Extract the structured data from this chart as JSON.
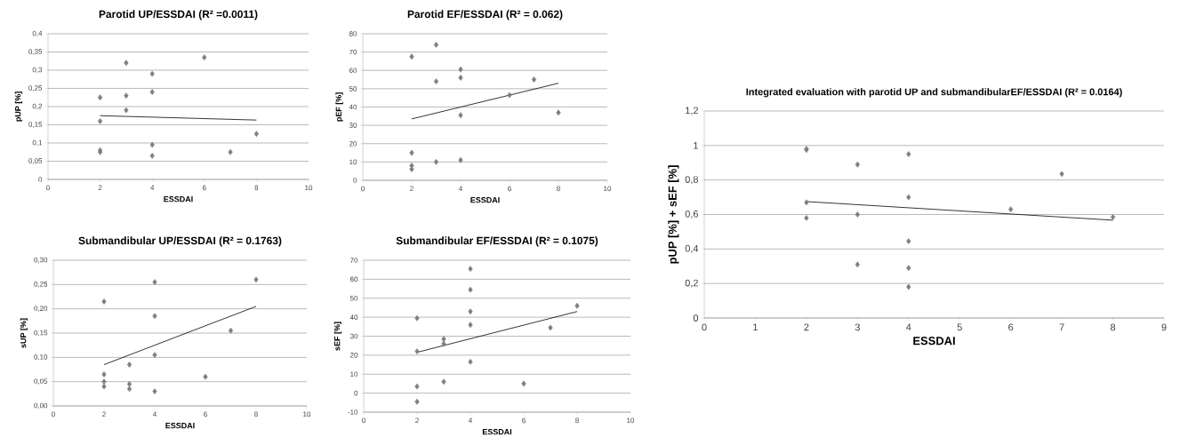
{
  "chart_data": [
    {
      "type": "scatter",
      "title": "Parotid UP/ESSDAI (R² =0.0011)",
      "xlabel": "ESSDAI",
      "ylabel": "pUP [%]",
      "xlim": [
        0,
        10
      ],
      "xticks": [
        0,
        2,
        4,
        6,
        8,
        10
      ],
      "ylim": [
        0,
        0.4
      ],
      "yticks": [
        0,
        {
          "value": 0.05,
          "label": "0,05"
        },
        {
          "value": 0.1,
          "label": "0,1"
        },
        {
          "value": 0.15,
          "label": "0,15"
        },
        {
          "value": 0.2,
          "label": "0,2"
        },
        {
          "value": 0.25,
          "label": "0,25"
        },
        {
          "value": 0.3,
          "label": "0,3"
        },
        {
          "value": 0.35,
          "label": "0,35"
        },
        {
          "value": 0.4,
          "label": "0,4"
        }
      ],
      "grid": "y",
      "marker": "diamond",
      "series": [
        {
          "color": "#7f7f7f",
          "x": [
            2,
            2,
            2,
            2,
            3,
            3,
            3,
            4,
            4,
            4,
            4,
            6,
            7,
            8
          ],
          "values": [
            0.225,
            0.16,
            0.08,
            0.075,
            0.32,
            0.23,
            0.19,
            0.29,
            0.24,
            0.095,
            0.065,
            0.335,
            0.075,
            0.125
          ]
        },
        {
          "type": "line",
          "color": "#000000",
          "marker": "none",
          "x": [
            2,
            8
          ],
          "values": [
            0.175,
            0.163
          ]
        }
      ]
    },
    {
      "type": "scatter",
      "title": "Parotid EF/ESSDAI (R² = 0.062)",
      "xlabel": "ESSDAI",
      "ylabel": "pEF [%]",
      "xlim": [
        0,
        10
      ],
      "xticks": [
        0,
        2,
        4,
        6,
        8,
        10
      ],
      "ylim": [
        0,
        80
      ],
      "yticks": [
        0,
        10,
        20,
        30,
        40,
        50,
        60,
        70,
        80
      ],
      "grid": "y",
      "marker": "diamond",
      "series": [
        {
          "color": "#7f7f7f",
          "x": [
            2,
            2,
            2,
            2,
            3,
            3,
            3,
            4,
            4,
            4,
            4,
            6,
            7,
            8
          ],
          "values": [
            67.5,
            15,
            8,
            6,
            74,
            54,
            10,
            60.5,
            56,
            35.5,
            11,
            46.5,
            55,
            37
          ]
        },
        {
          "type": "line",
          "color": "#000000",
          "marker": "none",
          "x": [
            2,
            8
          ],
          "values": [
            33.5,
            53
          ]
        }
      ]
    },
    {
      "type": "scatter",
      "title": "Submandibular UP/ESSDAI (R² = 0.1763)",
      "xlabel": "ESSDAI",
      "ylabel": "sUP [%]",
      "xlim": [
        0,
        10
      ],
      "xticks": [
        0,
        2,
        4,
        6,
        8,
        10
      ],
      "ylim": [
        0,
        0.3
      ],
      "yticks": [
        {
          "value": 0,
          "label": "0,00"
        },
        {
          "value": 0.05,
          "label": "0,05"
        },
        {
          "value": 0.1,
          "label": "0,10"
        },
        {
          "value": 0.15,
          "label": "0,15"
        },
        {
          "value": 0.2,
          "label": "0,20"
        },
        {
          "value": 0.25,
          "label": "0,25"
        },
        {
          "value": 0.3,
          "label": "0,30"
        }
      ],
      "grid": "y",
      "marker": "diamond",
      "series": [
        {
          "color": "#7f7f7f",
          "x": [
            2,
            2,
            2,
            2,
            3,
            3,
            3,
            4,
            4,
            4,
            4,
            6,
            7,
            8
          ],
          "values": [
            0.215,
            0.065,
            0.05,
            0.04,
            0.085,
            0.045,
            0.035,
            0.255,
            0.185,
            0.105,
            0.03,
            0.06,
            0.155,
            0.26
          ]
        },
        {
          "type": "line",
          "color": "#000000",
          "marker": "none",
          "x": [
            2,
            8
          ],
          "values": [
            0.085,
            0.205
          ]
        }
      ]
    },
    {
      "type": "scatter",
      "title": "Submandibular EF/ESSDAI (R² = 0.1075)",
      "xlabel": "ESSDAI",
      "ylabel": "sEF [%]",
      "xlim": [
        0,
        10
      ],
      "xticks": [
        0,
        2,
        4,
        6,
        8,
        10
      ],
      "ylim": [
        -10,
        70
      ],
      "yticks": [
        -10,
        0,
        10,
        20,
        30,
        40,
        50,
        60,
        70
      ],
      "grid": "y",
      "marker": "diamond",
      "series": [
        {
          "color": "#7f7f7f",
          "x": [
            2,
            2,
            2,
            2,
            3,
            3,
            3,
            4,
            4,
            4,
            4,
            4,
            6,
            7,
            8
          ],
          "values": [
            39.5,
            22,
            3.5,
            -4.5,
            28.5,
            26,
            6,
            65.5,
            54.5,
            43,
            36,
            16.5,
            5,
            34.5,
            46
          ]
        },
        {
          "type": "line",
          "color": "#000000",
          "marker": "none",
          "x": [
            2,
            8
          ],
          "values": [
            21.5,
            43
          ]
        }
      ]
    },
    {
      "type": "scatter",
      "title": "Integrated evaluation with parotid UP and submandibularEF/ESSDAI (R² = 0.0164)",
      "xlabel": "ESSDAI",
      "ylabel": "pUP [%] + sEF [%]",
      "xlim": [
        0,
        9
      ],
      "xticks": [
        0,
        1,
        2,
        3,
        4,
        5,
        6,
        7,
        8,
        9
      ],
      "ylim": [
        0,
        1.2
      ],
      "yticks": [
        0,
        {
          "value": 0.2,
          "label": "0,2"
        },
        {
          "value": 0.4,
          "label": "0,4"
        },
        {
          "value": 0.6,
          "label": "0,6"
        },
        {
          "value": 0.8,
          "label": "0,8"
        },
        1,
        {
          "value": 1.2,
          "label": "1,2"
        }
      ],
      "grid": "y",
      "marker": "diamond",
      "series": [
        {
          "color": "#7f7f7f",
          "x": [
            2,
            2,
            2,
            2,
            3,
            3,
            3,
            4,
            4,
            4,
            4,
            4,
            6,
            7,
            8
          ],
          "values": [
            0.98,
            0.975,
            0.67,
            0.58,
            0.89,
            0.6,
            0.31,
            0.95,
            0.7,
            0.445,
            0.29,
            0.18,
            0.63,
            0.835,
            0.585
          ]
        },
        {
          "type": "line",
          "color": "#000000",
          "marker": "none",
          "x": [
            2,
            8
          ],
          "values": [
            0.675,
            0.567
          ]
        }
      ]
    }
  ]
}
